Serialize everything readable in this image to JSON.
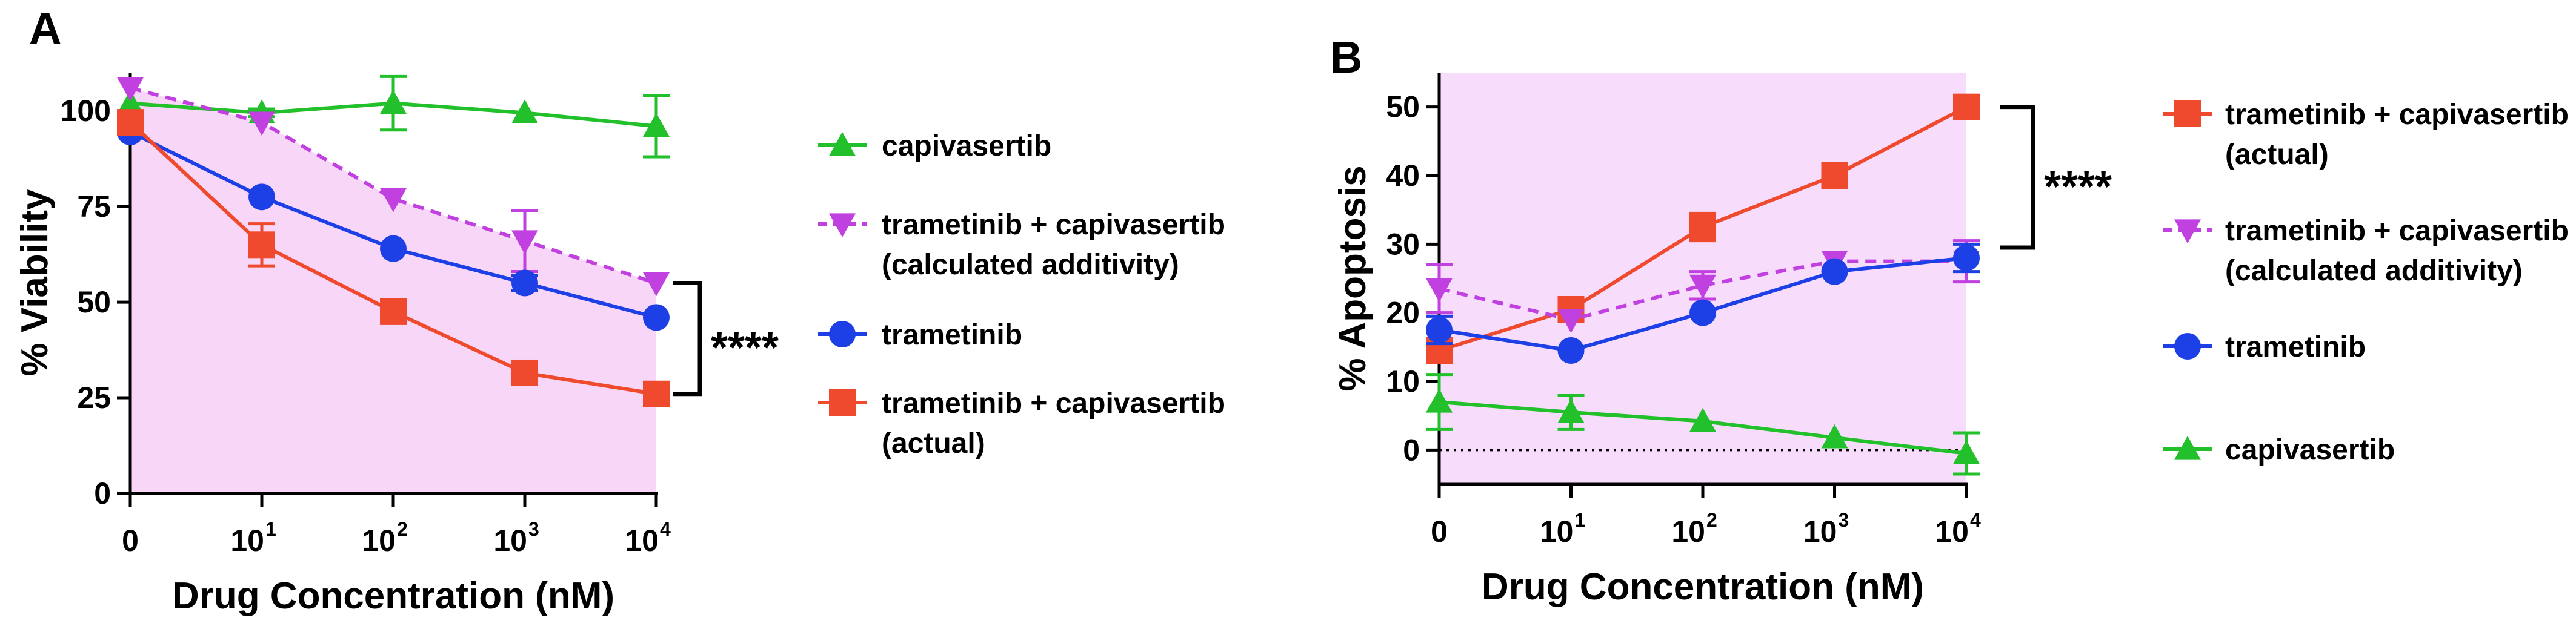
{
  "chart_data": [
    {
      "panel": "A",
      "type": "line",
      "xlabel": "Drug Concentration (nM)",
      "ylabel": "% Viability",
      "ylim": [
        0,
        110
      ],
      "yticks": [
        0,
        25,
        50,
        75,
        100
      ],
      "xticks": [
        {
          "base": "0",
          "exp": ""
        },
        {
          "base": "10",
          "exp": "1"
        },
        {
          "base": "10",
          "exp": "2"
        },
        {
          "base": "10",
          "exp": "3"
        },
        {
          "base": "10",
          "exp": "4"
        }
      ],
      "shaded_region_between": [
        "trametinib + capivasertib (calculated additivity)",
        "baseline"
      ],
      "significance": "****",
      "series": [
        {
          "name": "capivasertib",
          "legend": [
            "capivasertib"
          ],
          "color": "#22c02a",
          "marker": "triangle-up",
          "dash": false,
          "values": [
            102,
            99.5,
            102,
            99.5,
            96
          ],
          "errors": [
            0,
            1,
            7,
            0,
            8
          ]
        },
        {
          "name": "trametinib + capivasertib (calculated additivity)",
          "legend": [
            "trametinib + capivasertib",
            "(calculated additivity)"
          ],
          "color": "#c040e0",
          "marker": "triangle-down",
          "dash": true,
          "values": [
            106,
            97,
            77,
            66,
            55
          ],
          "errors": [
            0,
            0,
            0,
            8,
            0
          ]
        },
        {
          "name": "trametinib",
          "legend": [
            "trametinib"
          ],
          "color": "#1d3fe6",
          "marker": "circle",
          "dash": false,
          "values": [
            94.5,
            77.5,
            64,
            55,
            46
          ],
          "errors": [
            0,
            0,
            0,
            2,
            0
          ]
        },
        {
          "name": "trametinib + capivasertib (actual)",
          "legend": [
            "trametinib + capivasertib",
            "(actual)"
          ],
          "color": "#ef4a2e",
          "marker": "square",
          "dash": false,
          "values": [
            97,
            65,
            47.5,
            31.5,
            26
          ],
          "errors": [
            0,
            5.5,
            0,
            0,
            0
          ]
        }
      ]
    },
    {
      "panel": "B",
      "type": "line",
      "xlabel": "Drug Concentration (nM)",
      "ylabel": "% Apoptosis",
      "ylim": [
        -5,
        55
      ],
      "yticks": [
        0,
        10,
        20,
        30,
        40,
        50
      ],
      "xticks": [
        {
          "base": "0",
          "exp": ""
        },
        {
          "base": "10",
          "exp": "1"
        },
        {
          "base": "10",
          "exp": "2"
        },
        {
          "base": "10",
          "exp": "3"
        },
        {
          "base": "10",
          "exp": "4"
        }
      ],
      "shaded_region": "full plot area",
      "zero_line": "dotted",
      "significance": "****",
      "series": [
        {
          "name": "trametinib + capivasertib (actual)",
          "legend": [
            "trametinib + capivasertib",
            "(actual)"
          ],
          "color": "#ef4a2e",
          "marker": "square",
          "dash": false,
          "values": [
            14.5,
            20.5,
            32.5,
            40,
            50
          ],
          "errors": [
            0,
            0,
            2,
            0,
            0
          ]
        },
        {
          "name": "trametinib + capivasertib (calculated additivity)",
          "legend": [
            "trametinib + capivasertib",
            "(calculated additivity)"
          ],
          "color": "#c040e0",
          "marker": "triangle-down",
          "dash": true,
          "values": [
            23.5,
            19,
            24,
            27.5,
            27.5
          ],
          "errors": [
            3.5,
            0,
            2,
            0,
            3
          ]
        },
        {
          "name": "trametinib",
          "legend": [
            "trametinib"
          ],
          "color": "#1d3fe6",
          "marker": "circle",
          "dash": false,
          "values": [
            17.5,
            14.5,
            20,
            26,
            28
          ],
          "errors": [
            2,
            0,
            0,
            0,
            2
          ]
        },
        {
          "name": "capivasertib",
          "legend": [
            "capivasertib"
          ],
          "color": "#22c02a",
          "marker": "triangle-up",
          "dash": false,
          "values": [
            7,
            5.5,
            4.2,
            1.8,
            -0.5
          ],
          "errors": [
            4,
            2.5,
            0,
            0,
            3
          ]
        }
      ]
    }
  ]
}
